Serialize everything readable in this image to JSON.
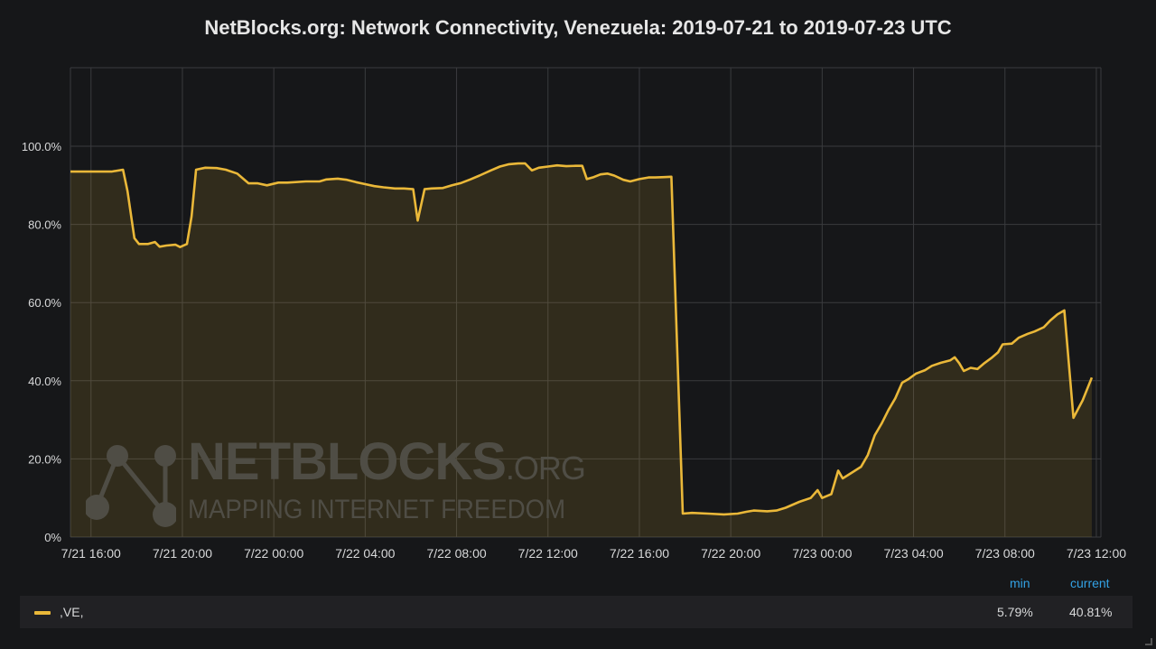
{
  "chart_data": {
    "type": "area",
    "title": "NetBlocks.org: Network Connectivity, Venezuela: 2019-07-21 to 2019-07-23 UTC",
    "x_unit": "hours from 7/21 16:00 UTC",
    "x_range": [
      -0.9,
      44.2
    ],
    "ylim": [
      0,
      100
    ],
    "y_ticks": [
      "0%",
      "20.0%",
      "40.0%",
      "60.0%",
      "80.0%",
      "100.0%"
    ],
    "x_ticks": [
      {
        "label": "7/21 16:00",
        "h": 0
      },
      {
        "label": "7/21 20:00",
        "h": 4
      },
      {
        "label": "7/22 00:00",
        "h": 8
      },
      {
        "label": "7/22 04:00",
        "h": 12
      },
      {
        "label": "7/22 08:00",
        "h": 16
      },
      {
        "label": "7/22 12:00",
        "h": 20
      },
      {
        "label": "7/22 16:00",
        "h": 24
      },
      {
        "label": "7/22 20:00",
        "h": 28
      },
      {
        "label": "7/23 00:00",
        "h": 32
      },
      {
        "label": "7/23 04:00",
        "h": 36
      },
      {
        "label": "7/23 08:00",
        "h": 40
      },
      {
        "label": "7/23 12:00",
        "h": 44
      }
    ],
    "grid": true,
    "series": [
      {
        "name": ",VE,",
        "color": "#eab839",
        "points": [
          [
            -0.9,
            93.5
          ],
          [
            0.9,
            93.5
          ],
          [
            1.4,
            94
          ],
          [
            1.6,
            88.5
          ],
          [
            1.9,
            76.5
          ],
          [
            2.1,
            75
          ],
          [
            2.5,
            75
          ],
          [
            2.8,
            75.5
          ],
          [
            3.0,
            74.3
          ],
          [
            3.3,
            74.6
          ],
          [
            3.7,
            74.8
          ],
          [
            3.9,
            74.2
          ],
          [
            4.2,
            75
          ],
          [
            4.4,
            82
          ],
          [
            4.6,
            94
          ],
          [
            5.0,
            94.5
          ],
          [
            5.5,
            94.4
          ],
          [
            5.9,
            94
          ],
          [
            6.4,
            93
          ],
          [
            6.6,
            92
          ],
          [
            6.9,
            90.5
          ],
          [
            7.3,
            90.5
          ],
          [
            7.7,
            90
          ],
          [
            8.2,
            90.7
          ],
          [
            8.6,
            90.7
          ],
          [
            9.4,
            91
          ],
          [
            10.0,
            91
          ],
          [
            10.3,
            91.5
          ],
          [
            10.8,
            91.7
          ],
          [
            11.2,
            91.4
          ],
          [
            11.6,
            90.8
          ],
          [
            12.0,
            90.3
          ],
          [
            12.4,
            89.8
          ],
          [
            12.8,
            89.5
          ],
          [
            13.3,
            89.2
          ],
          [
            13.7,
            89.2
          ],
          [
            14.1,
            89
          ],
          [
            14.3,
            81
          ],
          [
            14.6,
            89
          ],
          [
            14.9,
            89.2
          ],
          [
            15.4,
            89.3
          ],
          [
            15.8,
            90
          ],
          [
            16.2,
            90.6
          ],
          [
            16.6,
            91.5
          ],
          [
            17.0,
            92.5
          ],
          [
            17.5,
            93.8
          ],
          [
            17.9,
            94.8
          ],
          [
            18.3,
            95.4
          ],
          [
            18.7,
            95.6
          ],
          [
            19.0,
            95.6
          ],
          [
            19.3,
            93.8
          ],
          [
            19.6,
            94.5
          ],
          [
            20.0,
            94.8
          ],
          [
            20.4,
            95.1
          ],
          [
            20.8,
            94.9
          ],
          [
            21.2,
            95
          ],
          [
            21.5,
            95
          ],
          [
            21.7,
            91.6
          ],
          [
            22.0,
            92.1
          ],
          [
            22.3,
            92.8
          ],
          [
            22.6,
            93
          ],
          [
            22.9,
            92.5
          ],
          [
            23.3,
            91.4
          ],
          [
            23.6,
            91
          ],
          [
            24.0,
            91.6
          ],
          [
            24.4,
            92
          ],
          [
            24.7,
            92
          ],
          [
            25.1,
            92.1
          ],
          [
            25.4,
            92.2
          ],
          [
            25.9,
            6
          ],
          [
            26.3,
            6.2
          ],
          [
            27.0,
            6
          ],
          [
            27.7,
            5.8
          ],
          [
            28.3,
            6
          ],
          [
            28.7,
            6.5
          ],
          [
            29.0,
            6.8
          ],
          [
            29.6,
            6.6
          ],
          [
            30.0,
            6.8
          ],
          [
            30.4,
            7.5
          ],
          [
            31.0,
            9
          ],
          [
            31.5,
            10
          ],
          [
            31.8,
            12
          ],
          [
            32.0,
            10
          ],
          [
            32.4,
            11
          ],
          [
            32.7,
            17
          ],
          [
            32.9,
            15
          ],
          [
            33.3,
            16.5
          ],
          [
            33.7,
            18
          ],
          [
            34.0,
            21
          ],
          [
            34.3,
            26
          ],
          [
            34.6,
            29
          ],
          [
            34.9,
            32.5
          ],
          [
            35.2,
            35.5
          ],
          [
            35.5,
            39.5
          ],
          [
            35.8,
            40.5
          ],
          [
            36.1,
            41.8
          ],
          [
            36.5,
            42.7
          ],
          [
            36.8,
            43.8
          ],
          [
            37.2,
            44.6
          ],
          [
            37.6,
            45.2
          ],
          [
            37.8,
            46
          ],
          [
            38.0,
            44.5
          ],
          [
            38.2,
            42.5
          ],
          [
            38.5,
            43.3
          ],
          [
            38.8,
            43
          ],
          [
            39.1,
            44.5
          ],
          [
            39.4,
            45.8
          ],
          [
            39.7,
            47.3
          ],
          [
            39.9,
            49.3
          ],
          [
            40.3,
            49.5
          ],
          [
            40.6,
            51
          ],
          [
            41.0,
            52
          ],
          [
            41.3,
            52.6
          ],
          [
            41.7,
            53.7
          ],
          [
            42.0,
            55.5
          ],
          [
            42.3,
            57
          ],
          [
            42.6,
            58
          ],
          [
            43.0,
            30.5
          ],
          [
            43.4,
            35
          ],
          [
            43.8,
            40.8
          ]
        ]
      }
    ],
    "legend": {
      "placement": "bottom",
      "min_header": "min",
      "current_header": "current",
      "series_label": ",VE,",
      "min_value": "5.79%",
      "current_value": "40.81%"
    }
  },
  "watermark": {
    "name": "NETBLOCKS",
    "suffix": ".ORG",
    "tagline": "MAPPING INTERNET FREEDOM"
  }
}
